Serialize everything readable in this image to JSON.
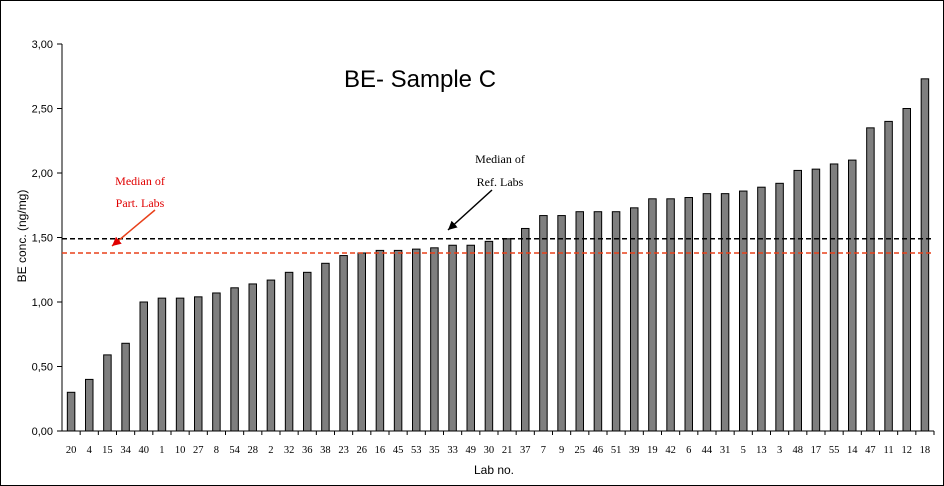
{
  "chart_data": {
    "type": "bar",
    "title": "BE- Sample C",
    "xlabel": "Lab no.",
    "ylabel": "BE conc. (ng/mg)",
    "ylim": [
      0,
      3.0
    ],
    "yticks": [
      "0,00",
      "0,50",
      "1,00",
      "1,50",
      "2,00",
      "2,50",
      "3,00"
    ],
    "categories": [
      "20",
      "4",
      "15",
      "34",
      "40",
      "1",
      "10",
      "27",
      "8",
      "54",
      "28",
      "2",
      "32",
      "36",
      "38",
      "23",
      "26",
      "16",
      "45",
      "53",
      "35",
      "33",
      "49",
      "30",
      "21",
      "37",
      "7",
      "9",
      "25",
      "46",
      "51",
      "39",
      "19",
      "42",
      "6",
      "44",
      "31",
      "5",
      "13",
      "3",
      "48",
      "17",
      "55",
      "14",
      "47",
      "11",
      "12",
      "18"
    ],
    "values": [
      0.3,
      0.4,
      0.59,
      0.68,
      1.0,
      1.03,
      1.03,
      1.04,
      1.07,
      1.11,
      1.14,
      1.17,
      1.23,
      1.23,
      1.3,
      1.36,
      1.38,
      1.4,
      1.4,
      1.41,
      1.42,
      1.44,
      1.44,
      1.47,
      1.49,
      1.57,
      1.67,
      1.67,
      1.7,
      1.7,
      1.7,
      1.73,
      1.8,
      1.8,
      1.81,
      1.84,
      1.84,
      1.86,
      1.89,
      1.92,
      2.02,
      2.03,
      2.07,
      2.1,
      2.35,
      2.4,
      2.5,
      2.73
    ],
    "bar_color": "#7f7f7f",
    "reference_lines": [
      {
        "value": 1.49,
        "color": "#000000",
        "label": "Median of Ref. Labs",
        "label_lines": [
          "Median of",
          "Ref. Labs"
        ]
      },
      {
        "value": 1.38,
        "color": "#e8401a",
        "label": "Median of Part. Labs",
        "label_lines": [
          "Median of",
          "Part. Labs"
        ],
        "label_color": "#e00000"
      }
    ],
    "grid": false,
    "legend": "none"
  }
}
